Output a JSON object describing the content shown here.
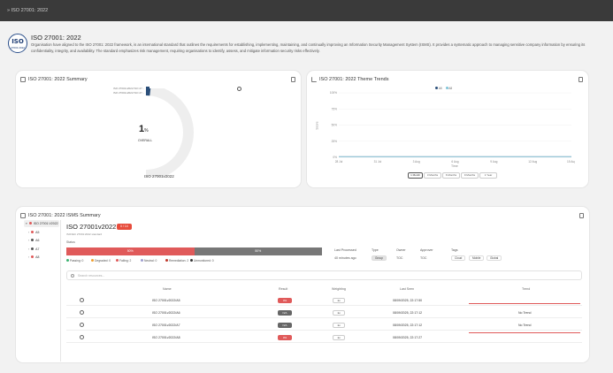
{
  "breadcrumb": "» ISO 27001: 2022",
  "header": {
    "logo_text": "ISO",
    "logo_sub": "27001:2022",
    "title": "ISO 27001: 2022",
    "description": "Organisation have aligned to the ISO 27001: 2022 framework, is an international standard that outlines the requirements for establishing, implementing, maintaining, and continually improving an Information Security Management System (ISMS). It provides a systematic approach to managing sensitive company information by ensuring its confidentiality, integrity, and availability. The standard emphasizes risk management, requiring organisations to identify, assess, and mitigate information security risks effectively."
  },
  "summary": {
    "title": "ISO 27001: 2022 Summary",
    "legend": [
      "ISO 27001v2022 ISO 27...",
      "ISO 27001v2022 ISO 27..."
    ],
    "percent": "1",
    "percent_suffix": "%",
    "overall": "OVERALL",
    "gauge_label": "ISO 27001v2022",
    "gauge_value_percent": 1
  },
  "trends": {
    "title": "ISO 27001: 2022 Theme Trends",
    "legend": [
      "A5",
      "A8"
    ],
    "ylabel": "Score",
    "xlabel": "Time",
    "buttons": [
      "1 Month",
      "3 Months",
      "6 Months",
      "9 Months",
      "1 Year"
    ],
    "active_button": 0
  },
  "chart_data": {
    "type": "line",
    "title": "ISO 27001: 2022 Theme Trends",
    "xlabel": "Time",
    "ylabel": "Score",
    "x": [
      "28 Jul",
      "31 Jul",
      "3 Aug",
      "6 Aug",
      "9 Aug",
      "12 Aug",
      "15 Aug"
    ],
    "ylim": [
      0,
      100
    ],
    "yticks": [
      "0%",
      "25%",
      "50%",
      "75%",
      "100%"
    ],
    "series": [
      {
        "name": "A5",
        "values": [
          1,
          1,
          1,
          1,
          1,
          1,
          1
        ],
        "color": "#2b4f7a"
      },
      {
        "name": "A8",
        "values": [
          1,
          1,
          1,
          1,
          1,
          1,
          1
        ],
        "color": "#7fc4d8"
      }
    ],
    "legend": "top"
  },
  "isms": {
    "title": "ISO 27001: 2022 ISMS Summary",
    "tree": [
      {
        "label": "ISO 27001:V2022",
        "color": "#e05a5a"
      },
      {
        "label": "A5",
        "color": "#e05a5a"
      },
      {
        "label": "A6",
        "color": "#555555"
      },
      {
        "label": "A7",
        "color": "#555555"
      },
      {
        "label": "A8",
        "color": "#e05a5a"
      }
    ],
    "name": "ISO 27001v2022",
    "badge": "0 / 14",
    "sub": "ISO/IEC 27001:2022 standard",
    "status_label": "Status",
    "bar": [
      {
        "label": "50%",
        "color": "#e05a5a",
        "fraction": 0.5
      },
      {
        "label": "50%",
        "color": "#777777",
        "fraction": 0.5
      }
    ],
    "status_legend": [
      {
        "label": "Passing: 0",
        "color": "#3cb371"
      },
      {
        "label": "Degraded: 0",
        "color": "#f0a030"
      },
      {
        "label": "Failing: 2",
        "color": "#e05a5a"
      },
      {
        "label": "Neutral: 0",
        "color": "#a0a0d0"
      },
      {
        "label": "Remediation: 2",
        "color": "#c0392b"
      },
      {
        "label": "Unmonitored: 0",
        "color": "#333333"
      }
    ],
    "last_processed_label": "Last Processed",
    "last_processed_value": "40 minutes ago",
    "type_label": "Type",
    "type_value": "Group",
    "owner_label": "Owner",
    "owner_value": "TOC",
    "approver_label": "Approver",
    "approver_value": "TOC",
    "tags_label": "Tags",
    "tags": [
      "Cloud",
      "Mobile",
      "Global"
    ],
    "search_placeholder": "Search resources...",
    "columns": [
      "Name",
      "Result",
      "Weighting",
      "Last Seen",
      "Trend"
    ],
    "rows": [
      {
        "name": "ISO 27001v2022/A5",
        "result": "0%",
        "result_color": "#e05a5a",
        "weight": "1x",
        "last_seen": "08/09/2025, 22:17:50",
        "trend": "",
        "trend_line": true
      },
      {
        "name": "ISO 27001v2022/A6",
        "result": "N/A",
        "result_color": "#666666",
        "weight": "1x",
        "last_seen": "08/09/2025, 22:17:12",
        "trend": "No Trend",
        "trend_line": false
      },
      {
        "name": "ISO 27001v2022/A7",
        "result": "N/A",
        "result_color": "#666666",
        "weight": "1x",
        "last_seen": "08/09/2025, 22:17:12",
        "trend": "No Trend",
        "trend_line": false
      },
      {
        "name": "ISO 27001v2022/A8",
        "result": "0%",
        "result_color": "#e05a5a",
        "weight": "1x",
        "last_seen": "08/09/2025, 22:17:27",
        "trend": "",
        "trend_line": true
      }
    ]
  }
}
